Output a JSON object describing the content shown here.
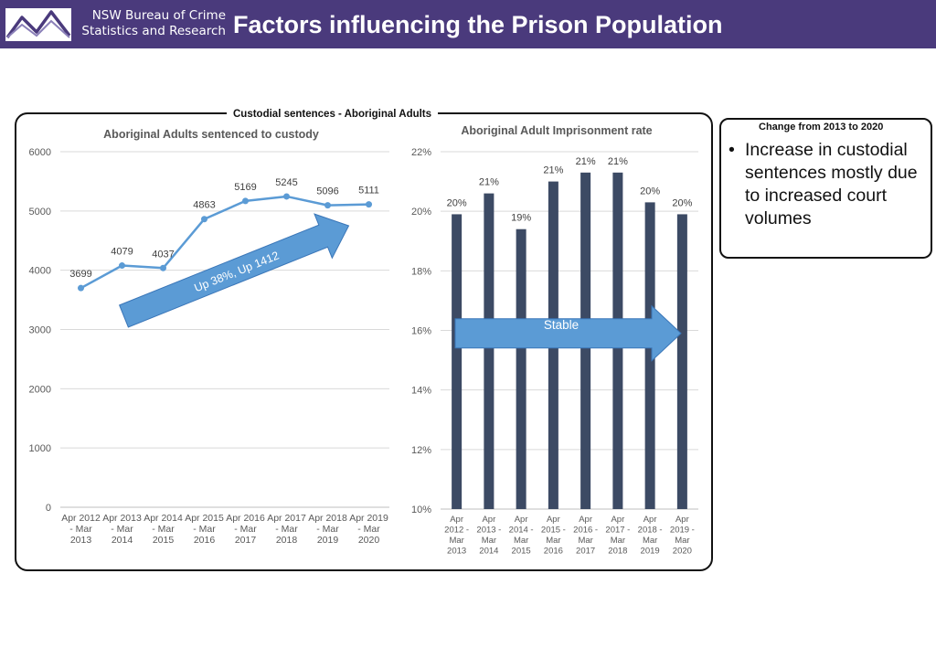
{
  "header": {
    "org_line1": "NSW Bureau of Crime",
    "org_line2": "Statistics and Research",
    "title": "Factors influencing the Prison Population",
    "logo_icon": "bocsar-logo-icon",
    "background_color": "#4a3a7c"
  },
  "panel": {
    "title": "Custodial sentences - Aboriginal Adults"
  },
  "notes": {
    "title": "Change from 2013 to 2020",
    "items": [
      "Increase in custodial sentences mostly due to increased court volumes"
    ]
  },
  "chart_data": [
    {
      "type": "line",
      "title": "Aboriginal Adults sentenced to custody",
      "categories": [
        [
          "Apr 2012",
          "- Mar",
          "2013"
        ],
        [
          "Apr 2013",
          "- Mar",
          "2014"
        ],
        [
          "Apr 2014",
          "- Mar",
          "2015"
        ],
        [
          "Apr 2015",
          "- Mar",
          "2016"
        ],
        [
          "Apr 2016",
          "- Mar",
          "2017"
        ],
        [
          "Apr 2017",
          "- Mar",
          "2018"
        ],
        [
          "Apr 2018",
          "- Mar",
          "2019"
        ],
        [
          "Apr 2019",
          "- Mar",
          "2020"
        ]
      ],
      "values": [
        3699,
        4079,
        4037,
        4863,
        5169,
        5245,
        5096,
        5111
      ],
      "data_labels": [
        "3699",
        "4079",
        "4037",
        "4863",
        "5169",
        "5245",
        "5096",
        "5111"
      ],
      "ylim": [
        0,
        6000
      ],
      "yticks": [
        0,
        1000,
        2000,
        3000,
        4000,
        5000,
        6000
      ],
      "ytick_labels": [
        "0",
        "1000",
        "2000",
        "3000",
        "4000",
        "5000",
        "6000"
      ],
      "grid": true,
      "color": "#5b9bd5",
      "annotation": "Up 38%, Up 1412"
    },
    {
      "type": "bar",
      "title": "Aboriginal Adult Imprisonment rate",
      "categories": [
        [
          "Apr",
          "2012 -",
          "Mar",
          "2013"
        ],
        [
          "Apr",
          "2013 -",
          "Mar",
          "2014"
        ],
        [
          "Apr",
          "2014 -",
          "Mar",
          "2015"
        ],
        [
          "Apr",
          "2015 -",
          "Mar",
          "2016"
        ],
        [
          "Apr",
          "2016 -",
          "Mar",
          "2017"
        ],
        [
          "Apr",
          "2017 -",
          "Mar",
          "2018"
        ],
        [
          "Apr",
          "2018 -",
          "Mar",
          "2019"
        ],
        [
          "Apr",
          "2019 -",
          "Mar",
          "2020"
        ]
      ],
      "values": [
        19.9,
        20.6,
        19.4,
        21.0,
        21.3,
        21.3,
        20.3,
        19.9
      ],
      "data_labels": [
        "20%",
        "21%",
        "19%",
        "21%",
        "21%",
        "21%",
        "20%",
        "20%"
      ],
      "ylim": [
        10,
        22
      ],
      "yticks": [
        10,
        12,
        14,
        16,
        18,
        20,
        22
      ],
      "ytick_labels": [
        "10%",
        "12%",
        "14%",
        "16%",
        "18%",
        "20%",
        "22%"
      ],
      "grid": true,
      "color": "#3c4a64",
      "annotation": "Stable"
    }
  ],
  "colors": {
    "line": "#5b9bd5",
    "bar": "#3c4a64",
    "arrow_fill": "#5b9bd5",
    "arrow_stroke": "#3a76b8",
    "grid": "#d9d9d9",
    "axis_text": "#595959"
  }
}
